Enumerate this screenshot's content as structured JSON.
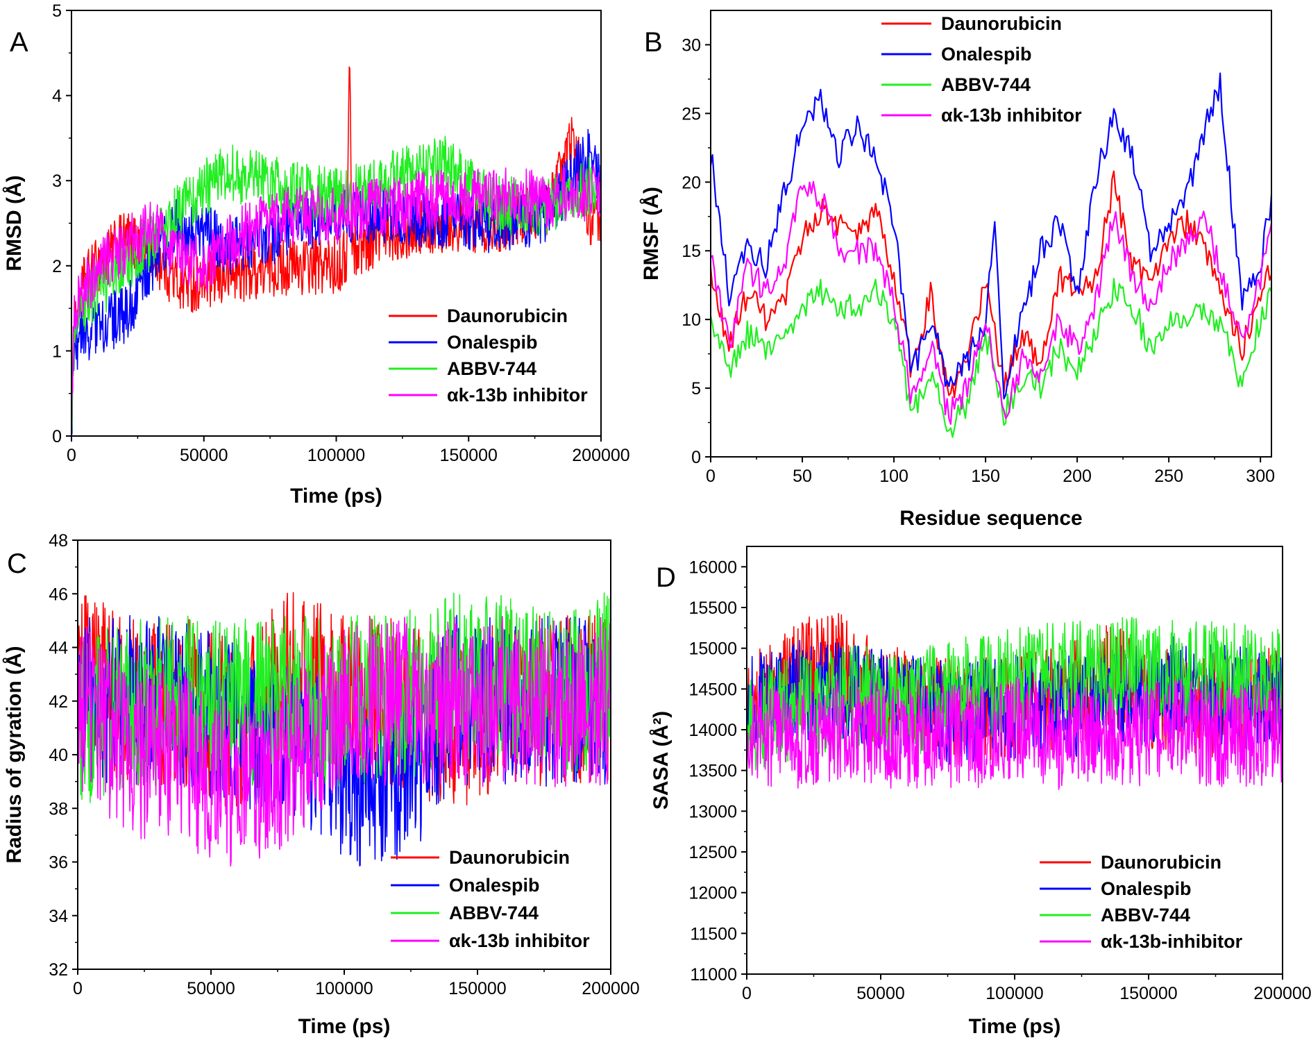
{
  "colors": {
    "Daunorubicin": "#ff0000",
    "Onalespib": "#0000ff",
    "ABBV-744": "#22ee22",
    "inhibitor": "#ff00ff"
  },
  "chart_data": [
    {
      "panel": "A",
      "type": "line",
      "xlabel": "Time (ps)",
      "ylabel": "RMSD (Å)",
      "xlim": [
        0,
        200000
      ],
      "ylim": [
        0,
        5
      ],
      "xticks": [
        0,
        50000,
        100000,
        150000,
        200000
      ],
      "yticks": [
        0,
        1,
        2,
        3,
        4,
        5
      ],
      "noise": 0.35,
      "points": 900,
      "legend_position": "lower-right",
      "series": [
        {
          "name": "Daunorubicin",
          "color": "#ff0000",
          "x": [
            0,
            1000,
            5000,
            10000,
            20000,
            30000,
            40000,
            50000,
            60000,
            80000,
            100000,
            104000,
            105000,
            106000,
            120000,
            140000,
            160000,
            180000,
            190000,
            195000,
            200000
          ],
          "y": [
            0,
            1.3,
            1.8,
            2.0,
            2.3,
            2.2,
            1.8,
            1.8,
            1.9,
            2.0,
            2.0,
            2.1,
            4.5,
            2.2,
            2.4,
            2.5,
            2.5,
            2.7,
            3.5,
            2.6,
            2.4
          ]
        },
        {
          "name": "Onalespib",
          "color": "#0000ff",
          "x": [
            0,
            1000,
            10000,
            20000,
            30000,
            40000,
            50000,
            60000,
            80000,
            100000,
            120000,
            140000,
            160000,
            180000,
            195000,
            200000
          ],
          "y": [
            0,
            1.1,
            1.3,
            1.4,
            2.0,
            2.5,
            2.4,
            2.2,
            2.4,
            2.6,
            2.6,
            2.5,
            2.5,
            2.6,
            3.3,
            2.9
          ]
        },
        {
          "name": "ABBV-744",
          "color": "#22ee22",
          "x": [
            0,
            1000,
            10000,
            20000,
            30000,
            40000,
            50000,
            60000,
            70000,
            80000,
            100000,
            120000,
            140000,
            160000,
            180000,
            200000
          ],
          "y": [
            0,
            1.4,
            1.7,
            2.0,
            2.3,
            2.6,
            2.9,
            3.1,
            3.0,
            2.9,
            2.8,
            3.0,
            3.2,
            2.7,
            2.7,
            3.0
          ]
        },
        {
          "name": "αk-13b inhibitor",
          "color": "#ff00ff",
          "x": [
            0,
            1000,
            10000,
            20000,
            30000,
            40000,
            50000,
            60000,
            80000,
            100000,
            120000,
            140000,
            160000,
            180000,
            200000
          ],
          "y": [
            0,
            1.5,
            2.0,
            2.2,
            2.5,
            2.1,
            2.0,
            2.3,
            2.6,
            2.6,
            2.7,
            2.8,
            2.8,
            2.8,
            2.9
          ]
        }
      ],
      "legend": [
        "Daunorubicin",
        "Onalespib",
        "ABBV-744",
        "αk-13b inhibitor"
      ]
    },
    {
      "panel": "B",
      "type": "line",
      "xlabel": "Residue sequence",
      "ylabel": "RMSF (Å)",
      "xlim": [
        0,
        306
      ],
      "ylim": [
        0,
        32.5
      ],
      "xticks": [
        0,
        50,
        100,
        150,
        200,
        250,
        300
      ],
      "yticks": [
        0,
        5,
        10,
        15,
        20,
        25,
        30
      ],
      "noise": 1.0,
      "points": 306,
      "legend_position": "top-center",
      "series": [
        {
          "name": "Daunorubicin",
          "color": "#ff0000",
          "x": [
            0,
            10,
            20,
            30,
            40,
            50,
            60,
            70,
            80,
            90,
            100,
            110,
            120,
            130,
            140,
            150,
            160,
            170,
            180,
            190,
            200,
            210,
            220,
            230,
            240,
            250,
            260,
            270,
            280,
            290,
            300,
            306
          ],
          "y": [
            13,
            8,
            12,
            10,
            11,
            16,
            18,
            17,
            16,
            18,
            13,
            6,
            12,
            4,
            7,
            13,
            5,
            9,
            7,
            13,
            12,
            13,
            20,
            14,
            13,
            16,
            17,
            15,
            11,
            8,
            12,
            14
          ]
        },
        {
          "name": "Onalespib",
          "color": "#0000ff",
          "x": [
            0,
            10,
            20,
            30,
            40,
            50,
            60,
            70,
            80,
            90,
            100,
            110,
            120,
            130,
            140,
            150,
            155,
            160,
            170,
            180,
            190,
            200,
            210,
            220,
            230,
            240,
            250,
            260,
            270,
            278,
            290,
            300,
            306
          ],
          "y": [
            22,
            12,
            15,
            14,
            19,
            24,
            26,
            22,
            24,
            22,
            17,
            6,
            10,
            5,
            7,
            10,
            17,
            5,
            10,
            15,
            17,
            12,
            20,
            25,
            22,
            15,
            17,
            19,
            24,
            27,
            11,
            14,
            19
          ]
        },
        {
          "name": "ABBV-744",
          "color": "#22ee22",
          "x": [
            0,
            10,
            20,
            30,
            40,
            50,
            60,
            70,
            80,
            90,
            100,
            110,
            120,
            130,
            140,
            150,
            160,
            170,
            180,
            190,
            200,
            210,
            220,
            230,
            240,
            250,
            260,
            270,
            280,
            290,
            300,
            306
          ],
          "y": [
            10,
            6,
            9,
            8,
            9,
            11,
            12,
            11,
            11,
            12,
            10,
            3,
            6,
            2,
            4,
            9,
            3,
            6,
            5,
            8,
            6,
            9,
            12,
            11,
            8,
            10,
            10,
            11,
            9,
            5,
            10,
            12
          ]
        },
        {
          "name": "αk-13b inhibitor",
          "color": "#ff00ff",
          "x": [
            0,
            10,
            20,
            30,
            40,
            50,
            60,
            70,
            80,
            90,
            100,
            110,
            120,
            130,
            140,
            150,
            160,
            170,
            180,
            190,
            200,
            210,
            220,
            230,
            240,
            250,
            260,
            270,
            280,
            290,
            300,
            306
          ],
          "y": [
            15,
            8,
            14,
            12,
            14,
            20,
            19,
            15,
            15,
            15,
            11,
            4,
            8,
            3,
            5,
            10,
            3,
            7,
            6,
            10,
            8,
            11,
            18,
            13,
            11,
            14,
            16,
            17,
            13,
            8,
            13,
            17
          ]
        }
      ],
      "legend": [
        "Daunorubicin",
        "Onalespib",
        "ABBV-744",
        "αk-13b inhibitor"
      ]
    },
    {
      "panel": "C",
      "type": "line",
      "xlabel": "Time (ps)",
      "ylabel": "Radius of gyration (Å)",
      "xlim": [
        0,
        200000
      ],
      "ylim": [
        32,
        48
      ],
      "xticks": [
        0,
        50000,
        100000,
        150000,
        200000
      ],
      "yticks": [
        32,
        34,
        36,
        38,
        40,
        42,
        44,
        46,
        48
      ],
      "noise": 3.2,
      "points": 900,
      "legend_position": "lower-right",
      "series": [
        {
          "name": "Daunorubicin",
          "color": "#ff0000",
          "x": [
            0,
            20000,
            40000,
            60000,
            80000,
            100000,
            120000,
            140000,
            160000,
            180000,
            200000
          ],
          "y": [
            43,
            42,
            42,
            41,
            43,
            42,
            42,
            41,
            42,
            42,
            42
          ]
        },
        {
          "name": "Onalespib",
          "color": "#0000ff",
          "x": [
            0,
            20000,
            40000,
            60000,
            80000,
            90000,
            100000,
            110000,
            120000,
            130000,
            140000,
            160000,
            180000,
            200000
          ],
          "y": [
            42,
            42,
            42,
            41,
            41,
            40,
            39,
            39,
            39,
            40,
            42,
            42,
            42,
            42
          ]
        },
        {
          "name": "ABBV-744",
          "color": "#22ee22",
          "x": [
            0,
            20000,
            40000,
            60000,
            80000,
            100000,
            120000,
            140000,
            160000,
            180000,
            200000
          ],
          "y": [
            41,
            42,
            42,
            42,
            42,
            42,
            42,
            43,
            43,
            42,
            43
          ]
        },
        {
          "name": "αk-13b inhibitor",
          "color": "#ff00ff",
          "x": [
            0,
            10000,
            20000,
            40000,
            50000,
            60000,
            70000,
            80000,
            90000,
            100000,
            120000,
            140000,
            160000,
            180000,
            200000
          ],
          "y": [
            42,
            41,
            40,
            40,
            39,
            39,
            39,
            40,
            41,
            42,
            42,
            42,
            42,
            42,
            42
          ]
        }
      ],
      "legend": [
        "Daunorubicin",
        "Onalespib",
        "ABBV-744",
        "αk-13b inhibitor"
      ]
    },
    {
      "panel": "D",
      "type": "line",
      "xlabel": "Time (ps)",
      "ylabel": "SASA (Å²)",
      "xlim": [
        0,
        200000
      ],
      "ylim": [
        11000,
        16250
      ],
      "xticks": [
        0,
        50000,
        100000,
        150000,
        200000
      ],
      "yticks": [
        11000,
        11500,
        12000,
        12500,
        13000,
        13500,
        14000,
        14500,
        15000,
        15500,
        16000
      ],
      "noise": 650,
      "points": 900,
      "legend_position": "lower-right",
      "series": [
        {
          "name": "Daunorubicin",
          "color": "#ff0000",
          "x": [
            0,
            20000,
            30000,
            50000,
            80000,
            100000,
            120000,
            135000,
            150000,
            170000,
            200000
          ],
          "y": [
            14300,
            14700,
            14900,
            14400,
            14200,
            14300,
            14400,
            14700,
            14400,
            14300,
            14400
          ]
        },
        {
          "name": "Onalespib",
          "color": "#0000ff",
          "x": [
            0,
            20000,
            40000,
            60000,
            80000,
            100000,
            120000,
            140000,
            160000,
            180000,
            200000
          ],
          "y": [
            14300,
            14500,
            14400,
            14300,
            14200,
            14300,
            14300,
            14400,
            14500,
            14400,
            14400
          ]
        },
        {
          "name": "ABBV-744",
          "color": "#22ee22",
          "x": [
            0,
            20000,
            40000,
            60000,
            80000,
            100000,
            120000,
            140000,
            160000,
            180000,
            200000
          ],
          "y": [
            14100,
            14300,
            14400,
            14300,
            14500,
            14600,
            14700,
            14800,
            14700,
            14700,
            14700
          ]
        },
        {
          "name": "αk-13b-inhibitor",
          "color": "#ff00ff",
          "x": [
            0,
            20000,
            40000,
            60000,
            80000,
            100000,
            120000,
            140000,
            160000,
            180000,
            200000
          ],
          "y": [
            14000,
            13900,
            14000,
            13900,
            13900,
            14000,
            13900,
            13900,
            14000,
            13900,
            14000
          ]
        }
      ],
      "legend": [
        "Daunorubicin",
        "Onalespib",
        "ABBV-744",
        "αk-13b-inhibitor"
      ]
    }
  ]
}
